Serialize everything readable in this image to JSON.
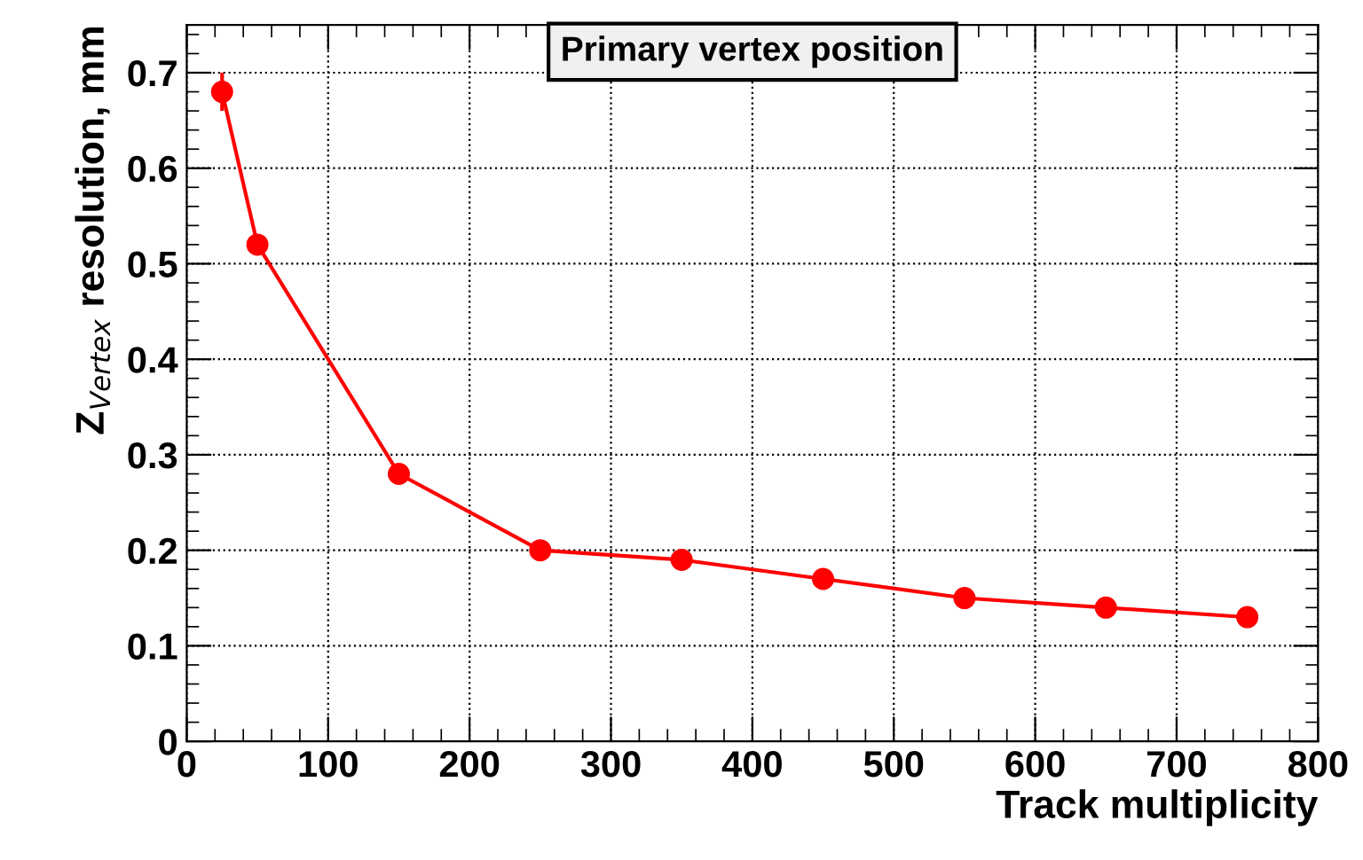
{
  "chart_data": {
    "type": "line",
    "title": "Primary vertex position",
    "xlabel": "Track multiplicity",
    "ylabel": "Z$_{Vertex}$ resolution, mm",
    "x": [
      25,
      50,
      150,
      250,
      350,
      450,
      550,
      650,
      750
    ],
    "series": [
      {
        "color": "#ff0000",
        "values": [
          0.68,
          0.52,
          0.28,
          0.2,
          0.19,
          0.17,
          0.15,
          0.14,
          0.13
        ],
        "errors": [
          0.02,
          null,
          null,
          null,
          null,
          null,
          null,
          null,
          null
        ]
      }
    ],
    "xlim": [
      0,
      800
    ],
    "xticks": [
      0,
      100,
      200,
      300,
      400,
      500,
      600,
      700,
      800
    ],
    "ylim": [
      0,
      0.75
    ],
    "yticks": [
      0,
      0.1,
      0.2,
      0.3,
      0.4,
      0.5,
      0.6,
      0.7
    ],
    "grid": true,
    "marker": "circle",
    "line_style": "solid"
  }
}
